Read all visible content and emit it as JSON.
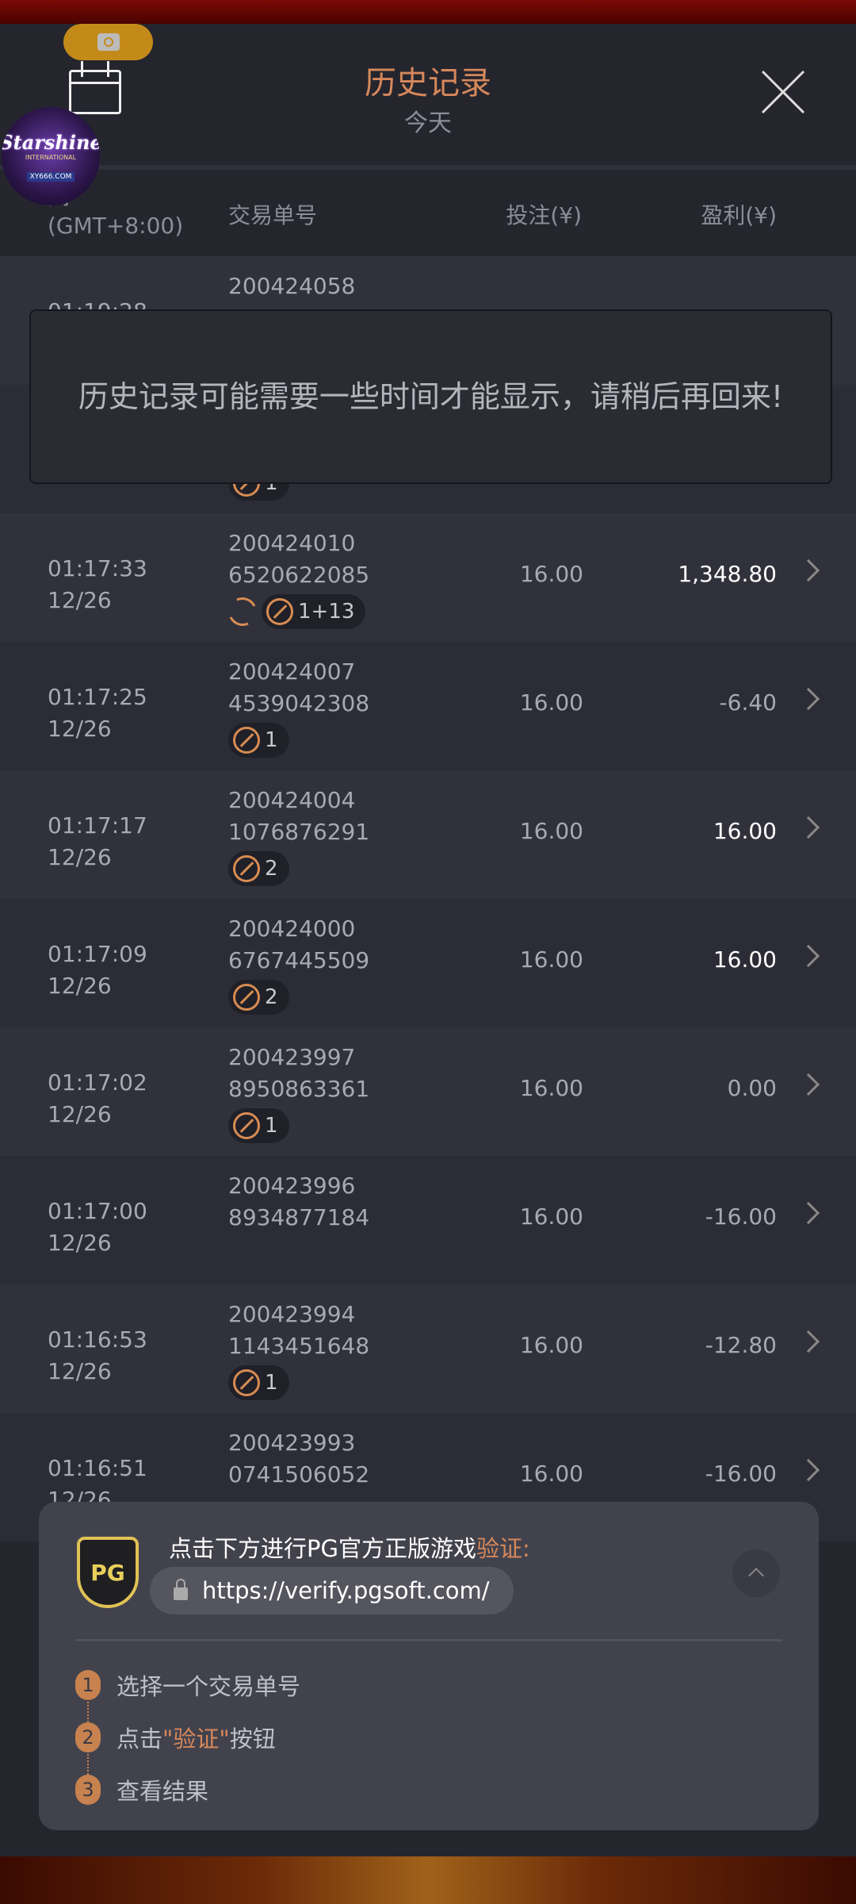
{
  "header": {
    "title": "历史记录",
    "subtitle": "今天"
  },
  "logo": {
    "text": "Starshine",
    "sub": "INTERNATIONAL",
    "site": "XY666.COM"
  },
  "columns": {
    "time_partial": "间",
    "timezone": "(GMT+8:00)",
    "txn": "交易单号",
    "bet": "投注(¥)",
    "profit": "盈利(¥)"
  },
  "rows": [
    {
      "time": "01:19:28",
      "date": "",
      "id1": "200424058",
      "id2": "",
      "bet": "",
      "profit": "",
      "badges": []
    },
    {
      "time": "",
      "date": "",
      "id1": "",
      "id2": "",
      "bet": "",
      "profit": "",
      "badges": [
        {
          "icon": "free-spin-icon",
          "label": "1"
        }
      ]
    },
    {
      "time": "01:17:33",
      "date": "12/26",
      "id1": "200424010",
      "id2": "6520622085",
      "bet": "16.00",
      "profit": "1,348.80",
      "win": true,
      "respin": true,
      "badges": [
        {
          "icon": "free-spin-icon",
          "label": "1+13"
        }
      ]
    },
    {
      "time": "01:17:25",
      "date": "12/26",
      "id1": "200424007",
      "id2": "4539042308",
      "bet": "16.00",
      "profit": "-6.40",
      "badges": [
        {
          "icon": "free-spin-icon",
          "label": "1"
        }
      ]
    },
    {
      "time": "01:17:17",
      "date": "12/26",
      "id1": "200424004",
      "id2": "1076876291",
      "bet": "16.00",
      "profit": "16.00",
      "win": true,
      "badges": [
        {
          "icon": "free-spin-icon",
          "label": "2"
        }
      ]
    },
    {
      "time": "01:17:09",
      "date": "12/26",
      "id1": "200424000",
      "id2": "6767445509",
      "bet": "16.00",
      "profit": "16.00",
      "win": true,
      "badges": [
        {
          "icon": "free-spin-icon",
          "label": "2"
        }
      ]
    },
    {
      "time": "01:17:02",
      "date": "12/26",
      "id1": "200423997",
      "id2": "8950863361",
      "bet": "16.00",
      "profit": "0.00",
      "badges": [
        {
          "icon": "free-spin-icon",
          "label": "1"
        }
      ]
    },
    {
      "time": "01:17:00",
      "date": "12/26",
      "id1": "200423996",
      "id2": "8934877184",
      "bet": "16.00",
      "profit": "-16.00",
      "badges": []
    },
    {
      "time": "01:16:53",
      "date": "12/26",
      "id1": "200423994",
      "id2": "1143451648",
      "bet": "16.00",
      "profit": "-12.80",
      "badges": [
        {
          "icon": "free-spin-icon",
          "label": "1"
        }
      ]
    },
    {
      "time": "01:16:51",
      "date": "12/26",
      "id1": "200423993",
      "id2": "0741506052",
      "bet": "16.00",
      "profit": "-16.00",
      "badges": []
    }
  ],
  "toast": "历史记录可能需要一些时间才能显示，请稍后再回来!",
  "verify": {
    "head": "点击下方进行PG官方正版游戏",
    "head_hl": "验证:",
    "logo": "PG",
    "url": "https://verify.pgsoft.com/",
    "steps": [
      {
        "num": "1",
        "pre": "选择一个交易单号",
        "hl": "",
        "post": ""
      },
      {
        "num": "2",
        "pre": "点击",
        "hl": "\"验证\"",
        "post": "按钮"
      },
      {
        "num": "3",
        "pre": "查看结果",
        "hl": "",
        "post": ""
      }
    ]
  },
  "colors": {
    "accent": "#d6885a",
    "panel": "#25252e",
    "row_a": "#31313c",
    "row_b": "#2c2c36",
    "card": "#42424d"
  }
}
